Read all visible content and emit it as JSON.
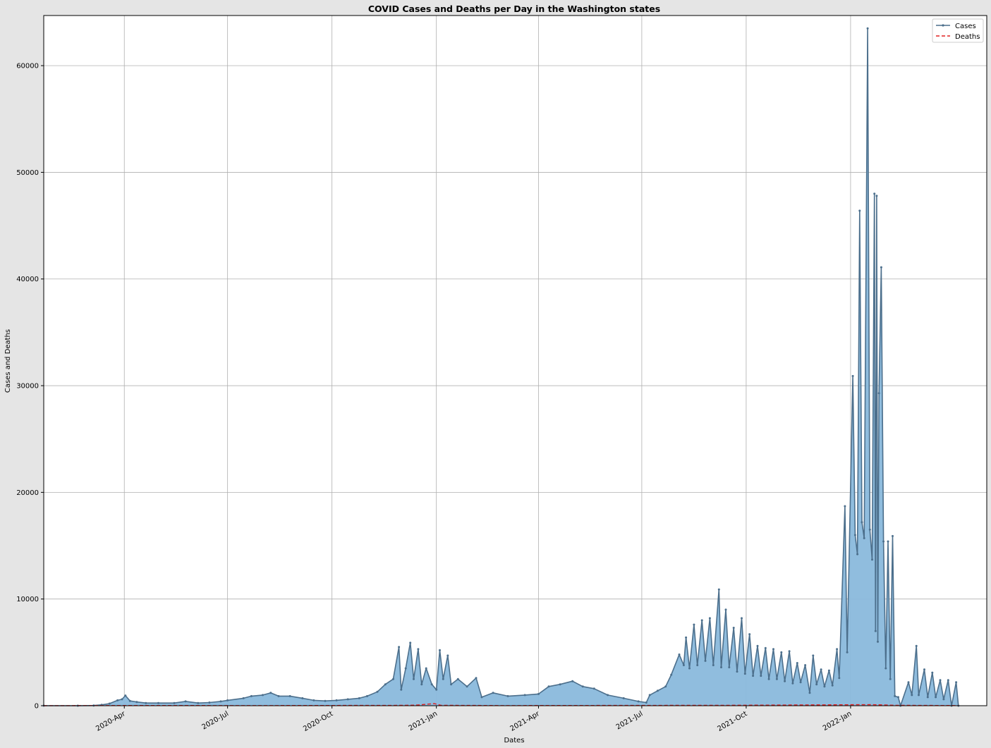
{
  "chart_data": {
    "type": "line",
    "title": "COVID Cases and Deaths per Day in the Washington states",
    "xlabel": "Dates",
    "ylabel": "Cases and Deaths",
    "xlim": [
      "2020-01-21",
      "2022-05-01"
    ],
    "ylim": [
      0,
      64700
    ],
    "grid": true,
    "legend_position": "top-right",
    "x_ticks": [
      {
        "date": "2020-04-01",
        "label": "2020-Apr"
      },
      {
        "date": "2020-07-01",
        "label": "2020-Jul"
      },
      {
        "date": "2020-10-01",
        "label": "2020-Oct"
      },
      {
        "date": "2021-01-01",
        "label": "2021-Jan"
      },
      {
        "date": "2021-04-01",
        "label": "2021-Apr"
      },
      {
        "date": "2021-07-01",
        "label": "2021-Jul"
      },
      {
        "date": "2021-10-01",
        "label": "2021-Oct"
      },
      {
        "date": "2022-01-01",
        "label": "2022-Jan"
      }
    ],
    "y_ticks": [
      {
        "value": 0,
        "label": "0"
      },
      {
        "value": 10000,
        "label": "10000"
      },
      {
        "value": 20000,
        "label": "20000"
      },
      {
        "value": 30000,
        "label": "30000"
      },
      {
        "value": 40000,
        "label": "40000"
      },
      {
        "value": 50000,
        "label": "50000"
      },
      {
        "value": 60000,
        "label": "60000"
      }
    ],
    "series": [
      {
        "name": "Cases",
        "color": "#4c6f8c",
        "fill_color": "#8ab9dc",
        "style": "solid-with-point-markers",
        "points": [
          [
            "2020-01-21",
            0
          ],
          [
            "2020-02-20",
            0
          ],
          [
            "2020-03-05",
            20
          ],
          [
            "2020-03-12",
            80
          ],
          [
            "2020-03-19",
            200
          ],
          [
            "2020-03-26",
            500
          ],
          [
            "2020-03-30",
            600
          ],
          [
            "2020-04-02",
            950
          ],
          [
            "2020-04-06",
            450
          ],
          [
            "2020-04-12",
            350
          ],
          [
            "2020-04-20",
            250
          ],
          [
            "2020-05-01",
            250
          ],
          [
            "2020-05-15",
            250
          ],
          [
            "2020-05-25",
            400
          ],
          [
            "2020-06-05",
            250
          ],
          [
            "2020-06-15",
            300
          ],
          [
            "2020-06-25",
            400
          ],
          [
            "2020-07-01",
            500
          ],
          [
            "2020-07-15",
            700
          ],
          [
            "2020-07-22",
            900
          ],
          [
            "2020-08-01",
            1000
          ],
          [
            "2020-08-08",
            1200
          ],
          [
            "2020-08-15",
            900
          ],
          [
            "2020-08-25",
            900
          ],
          [
            "2020-09-05",
            700
          ],
          [
            "2020-09-15",
            500
          ],
          [
            "2020-09-25",
            450
          ],
          [
            "2020-10-05",
            500
          ],
          [
            "2020-10-15",
            600
          ],
          [
            "2020-10-25",
            700
          ],
          [
            "2020-11-01",
            900
          ],
          [
            "2020-11-10",
            1300
          ],
          [
            "2020-11-17",
            2000
          ],
          [
            "2020-11-24",
            2500
          ],
          [
            "2020-11-29",
            5500
          ],
          [
            "2020-12-01",
            1500
          ],
          [
            "2020-12-05",
            3500
          ],
          [
            "2020-12-09",
            5900
          ],
          [
            "2020-12-12",
            2500
          ],
          [
            "2020-12-16",
            5300
          ],
          [
            "2020-12-19",
            2000
          ],
          [
            "2020-12-23",
            3500
          ],
          [
            "2020-12-28",
            2000
          ],
          [
            "2021-01-01",
            1500
          ],
          [
            "2021-01-04",
            5200
          ],
          [
            "2021-01-07",
            2500
          ],
          [
            "2021-01-11",
            4700
          ],
          [
            "2021-01-14",
            2000
          ],
          [
            "2021-01-20",
            2500
          ],
          [
            "2021-01-28",
            1800
          ],
          [
            "2021-02-05",
            2600
          ],
          [
            "2021-02-10",
            800
          ],
          [
            "2021-02-20",
            1200
          ],
          [
            "2021-03-05",
            900
          ],
          [
            "2021-03-20",
            1000
          ],
          [
            "2021-04-01",
            1100
          ],
          [
            "2021-04-10",
            1800
          ],
          [
            "2021-04-20",
            2000
          ],
          [
            "2021-05-01",
            2300
          ],
          [
            "2021-05-10",
            1800
          ],
          [
            "2021-05-20",
            1600
          ],
          [
            "2021-06-01",
            1000
          ],
          [
            "2021-06-15",
            700
          ],
          [
            "2021-06-28",
            400
          ],
          [
            "2021-07-05",
            300
          ],
          [
            "2021-07-08",
            1000
          ],
          [
            "2021-07-15",
            1400
          ],
          [
            "2021-07-22",
            1800
          ],
          [
            "2021-07-27",
            2900
          ],
          [
            "2021-08-03",
            4800
          ],
          [
            "2021-08-07",
            3800
          ],
          [
            "2021-08-09",
            6400
          ],
          [
            "2021-08-12",
            3500
          ],
          [
            "2021-08-16",
            7600
          ],
          [
            "2021-08-19",
            3800
          ],
          [
            "2021-08-23",
            8000
          ],
          [
            "2021-08-26",
            4200
          ],
          [
            "2021-08-30",
            8200
          ],
          [
            "2021-09-02",
            3800
          ],
          [
            "2021-09-07",
            10900
          ],
          [
            "2021-09-09",
            3600
          ],
          [
            "2021-09-13",
            9000
          ],
          [
            "2021-09-16",
            3600
          ],
          [
            "2021-09-20",
            7300
          ],
          [
            "2021-09-23",
            3200
          ],
          [
            "2021-09-27",
            8200
          ],
          [
            "2021-09-30",
            3000
          ],
          [
            "2021-10-04",
            6700
          ],
          [
            "2021-10-07",
            2800
          ],
          [
            "2021-10-11",
            5600
          ],
          [
            "2021-10-14",
            2800
          ],
          [
            "2021-10-18",
            5400
          ],
          [
            "2021-10-21",
            2500
          ],
          [
            "2021-10-25",
            5300
          ],
          [
            "2021-10-28",
            2500
          ],
          [
            "2021-11-01",
            5000
          ],
          [
            "2021-11-04",
            2300
          ],
          [
            "2021-11-08",
            5100
          ],
          [
            "2021-11-11",
            2100
          ],
          [
            "2021-11-15",
            4000
          ],
          [
            "2021-11-18",
            2200
          ],
          [
            "2021-11-22",
            3800
          ],
          [
            "2021-11-26",
            1200
          ],
          [
            "2021-11-29",
            4700
          ],
          [
            "2021-12-02",
            2000
          ],
          [
            "2021-12-06",
            3400
          ],
          [
            "2021-12-09",
            1800
          ],
          [
            "2021-12-13",
            3300
          ],
          [
            "2021-12-16",
            1900
          ],
          [
            "2021-12-20",
            5300
          ],
          [
            "2021-12-22",
            2600
          ],
          [
            "2021-12-27",
            18700
          ],
          [
            "2021-12-29",
            5000
          ],
          [
            "2022-01-03",
            30900
          ],
          [
            "2022-01-05",
            16000
          ],
          [
            "2022-01-07",
            14200
          ],
          [
            "2022-01-09",
            46400
          ],
          [
            "2022-01-11",
            17200
          ],
          [
            "2022-01-13",
            15700
          ],
          [
            "2022-01-16",
            63500
          ],
          [
            "2022-01-18",
            16500
          ],
          [
            "2022-01-20",
            13700
          ],
          [
            "2022-01-22",
            48000
          ],
          [
            "2022-01-23",
            7000
          ],
          [
            "2022-01-24",
            47800
          ],
          [
            "2022-01-25",
            6000
          ],
          [
            "2022-01-26",
            29300
          ],
          [
            "2022-01-28",
            41100
          ],
          [
            "2022-01-30",
            15400
          ],
          [
            "2022-02-01",
            3500
          ],
          [
            "2022-02-03",
            15400
          ],
          [
            "2022-02-05",
            2500
          ],
          [
            "2022-02-07",
            15900
          ],
          [
            "2022-02-09",
            900
          ],
          [
            "2022-02-12",
            800
          ],
          [
            "2022-02-14",
            0
          ],
          [
            "2022-02-21",
            2200
          ],
          [
            "2022-02-24",
            1000
          ],
          [
            "2022-02-28",
            5600
          ],
          [
            "2022-03-02",
            1000
          ],
          [
            "2022-03-07",
            3400
          ],
          [
            "2022-03-10",
            800
          ],
          [
            "2022-03-14",
            3100
          ],
          [
            "2022-03-17",
            800
          ],
          [
            "2022-03-21",
            2400
          ],
          [
            "2022-03-24",
            600
          ],
          [
            "2022-03-28",
            2400
          ],
          [
            "2022-03-31",
            0
          ],
          [
            "2022-04-04",
            2200
          ],
          [
            "2022-04-06",
            0
          ]
        ]
      },
      {
        "name": "Deaths",
        "color": "#e02020",
        "style": "dashed",
        "points": [
          [
            "2020-01-21",
            0
          ],
          [
            "2020-04-01",
            20
          ],
          [
            "2020-08-01",
            10
          ],
          [
            "2020-12-01",
            30
          ],
          [
            "2020-12-15",
            60
          ],
          [
            "2020-12-30",
            200
          ],
          [
            "2021-01-05",
            40
          ],
          [
            "2021-03-01",
            15
          ],
          [
            "2021-09-15",
            40
          ],
          [
            "2022-01-20",
            100
          ],
          [
            "2022-02-10",
            40
          ],
          [
            "2022-04-06",
            15
          ]
        ]
      }
    ]
  }
}
